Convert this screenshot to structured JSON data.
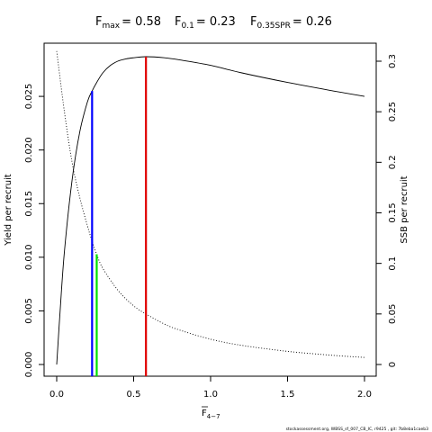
{
  "title": {
    "fmax": {
      "label": "F",
      "sub": "max",
      "value": "= 0.58"
    },
    "f01": {
      "label": "F",
      "sub": "0.1",
      "value": "= 0.23"
    },
    "f035": {
      "label": "F",
      "sub": "0.35SPR",
      "value": "= 0.26"
    }
  },
  "axes": {
    "xlabel": {
      "base": "F",
      "sub": "4−7"
    },
    "ylabel_left": "Yield per recruit",
    "ylabel_right": "SSB per recruit"
  },
  "footer": "stockassessment.org, WBSS_sf_007_CB_IC, r9425 , git: 7b8eba1caeb3",
  "chart_data": {
    "type": "line",
    "xlim": [
      0,
      2
    ],
    "ylim_left": [
      0,
      0.0287
    ],
    "ylim_right": [
      0,
      0.31
    ],
    "x_ticks": [
      "0.0",
      "0.5",
      "1.0",
      "1.5",
      "2.0"
    ],
    "x_tick_values": [
      0,
      0.5,
      1.0,
      1.5,
      2.0
    ],
    "y_left_ticks": [
      "0.000",
      "0.005",
      "0.010",
      "0.015",
      "0.020",
      "0.025"
    ],
    "y_left_tick_values": [
      0,
      0.005,
      0.01,
      0.015,
      0.02,
      0.025
    ],
    "y_right_ticks": [
      "0",
      "0.05",
      "0.1",
      "0.15",
      "0.2",
      "0.25",
      "0.3"
    ],
    "y_right_tick_values": [
      0,
      0.05,
      0.1,
      0.15,
      0.2,
      0.25,
      0.3
    ],
    "grid": false,
    "legend": "none",
    "series": [
      {
        "axis": "left",
        "style": "solid",
        "x": [
          0,
          0.02,
          0.05,
          0.1,
          0.15,
          0.2,
          0.23,
          0.26,
          0.3,
          0.35,
          0.4,
          0.45,
          0.5,
          0.58,
          0.7,
          0.8,
          1.0,
          1.2,
          1.5,
          1.8,
          2.0
        ],
        "y": [
          0,
          0.0045,
          0.0105,
          0.0172,
          0.0217,
          0.0245,
          0.0255,
          0.0263,
          0.0272,
          0.0279,
          0.0283,
          0.0285,
          0.0286,
          0.0287,
          0.0286,
          0.0284,
          0.0279,
          0.0272,
          0.0263,
          0.0255,
          0.025
        ]
      },
      {
        "axis": "right",
        "style": "dotted",
        "x": [
          0,
          0.05,
          0.1,
          0.15,
          0.2,
          0.23,
          0.26,
          0.3,
          0.4,
          0.5,
          0.58,
          0.7,
          0.8,
          1.0,
          1.2,
          1.5,
          1.8,
          2.0
        ],
        "y": [
          0.31,
          0.25,
          0.2,
          0.165,
          0.137,
          0.122,
          0.109,
          0.095,
          0.073,
          0.058,
          0.05,
          0.04,
          0.034,
          0.025,
          0.019,
          0.013,
          0.009,
          0.007
        ]
      }
    ],
    "reference_lines": [
      {
        "name": "Fmax",
        "x": 0.58,
        "y_top": 0.0287,
        "axis": "left",
        "color": "#e00000"
      },
      {
        "name": "F0.1",
        "x": 0.23,
        "y_top": 0.0255,
        "axis": "left",
        "color": "#0000ff"
      },
      {
        "name": "F0.35SPR",
        "x": 0.26,
        "y_top": 0.109,
        "axis": "right",
        "color": "#00e000"
      }
    ]
  }
}
